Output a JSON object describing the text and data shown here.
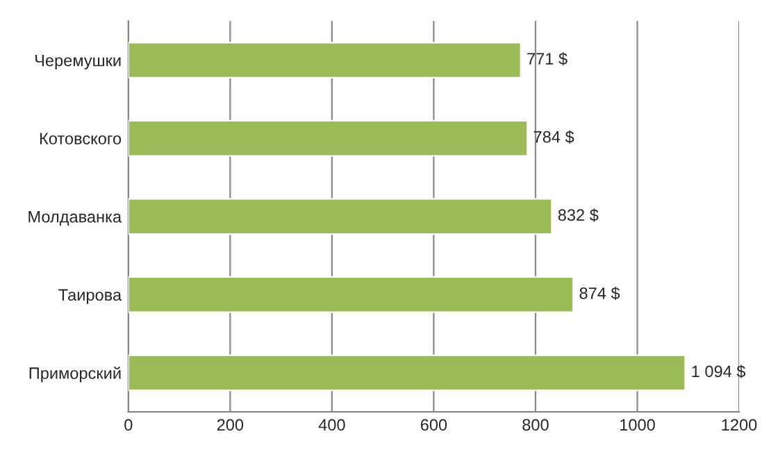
{
  "chart_data": {
    "type": "bar",
    "orientation": "horizontal",
    "categories": [
      "Черемушки",
      "Котовского",
      "Молдаванка",
      "Таирова",
      "Приморский"
    ],
    "values": [
      771,
      784,
      832,
      874,
      1094
    ],
    "value_labels": [
      "771 $",
      "784 $",
      "832 $",
      "874 $",
      "1 094 $"
    ],
    "color": "#9bbb59",
    "xlim": [
      0,
      1200
    ],
    "xticks": [
      0,
      200,
      400,
      600,
      800,
      1000,
      1200
    ],
    "grid": "x",
    "legend": false
  }
}
